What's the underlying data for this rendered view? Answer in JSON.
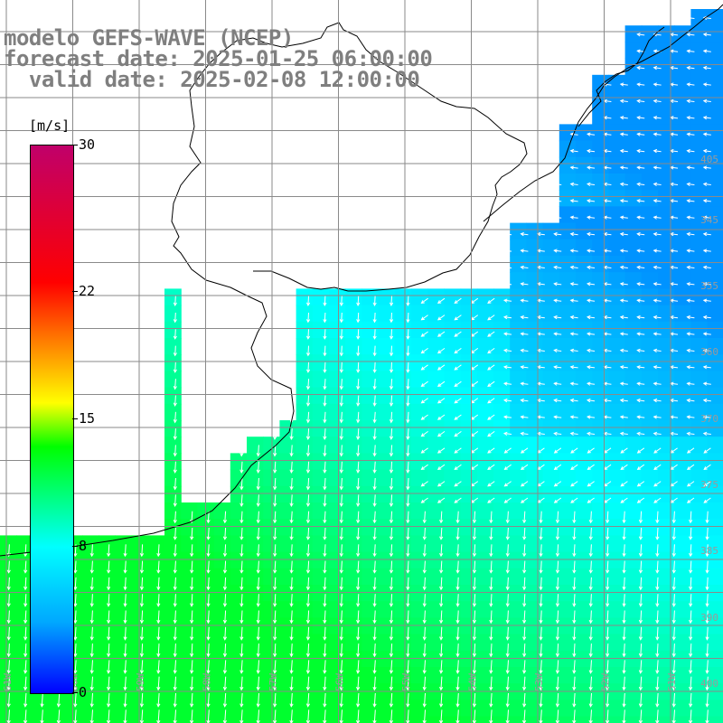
{
  "title": {
    "model": "modelo GEFS-WAVE (NCEP)",
    "forecast": "forecast date: 2025-01-25 06:00:00",
    "valid": "  valid date: 2025-02-08 12:00:00"
  },
  "legend": {
    "unit": "[m/s]",
    "ticks": [
      "30",
      "22",
      "15",
      "8",
      "0"
    ],
    "tick_values": [
      30,
      22,
      15,
      8,
      0
    ],
    "range": [
      0,
      30
    ],
    "colors": [
      "#0000ff",
      "#00a8ff",
      "#00ffff",
      "#00ff00",
      "#ffff00",
      "#ff8000",
      "#ff0000",
      "#c0006a"
    ]
  },
  "map": {
    "lat_labels": [
      "345",
      "355",
      "360",
      "370",
      "375",
      "385",
      "390",
      "400",
      "405"
    ],
    "lon_labels": [
      "61W",
      "60W",
      "59W",
      "58W",
      "57W",
      "56W",
      "55W",
      "54W",
      "53W",
      "52W",
      "51W"
    ],
    "land_color": "#ffffff",
    "grid_color": "#8a8a8a",
    "arrow_color": "#ffffff"
  }
}
